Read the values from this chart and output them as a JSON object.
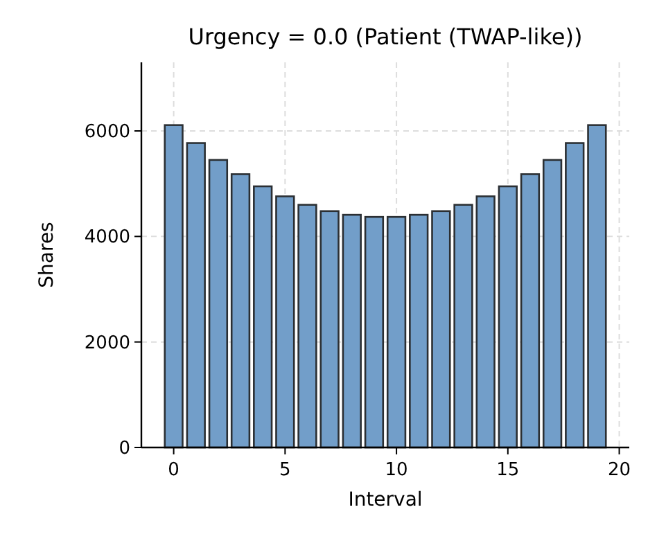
{
  "chart_data": {
    "type": "bar",
    "title": "Urgency = 0.0 (Patient (TWAP-like))",
    "xlabel": "Interval",
    "ylabel": "Shares",
    "x": [
      0,
      1,
      2,
      3,
      4,
      5,
      6,
      7,
      8,
      9,
      10,
      11,
      12,
      13,
      14,
      15,
      16,
      17,
      18,
      19
    ],
    "values": [
      6110,
      5770,
      5450,
      5180,
      4950,
      4760,
      4600,
      4480,
      4410,
      4370,
      4370,
      4410,
      4480,
      4600,
      4760,
      4950,
      5180,
      5450,
      5770,
      6110
    ],
    "color": "#729ec9",
    "xlim": [
      -1.45,
      20.45
    ],
    "ylim": [
      0,
      7300
    ],
    "xticks": [
      0,
      5,
      10,
      15,
      20
    ],
    "yticks": [
      0,
      2000,
      4000,
      6000
    ],
    "grid": true
  }
}
